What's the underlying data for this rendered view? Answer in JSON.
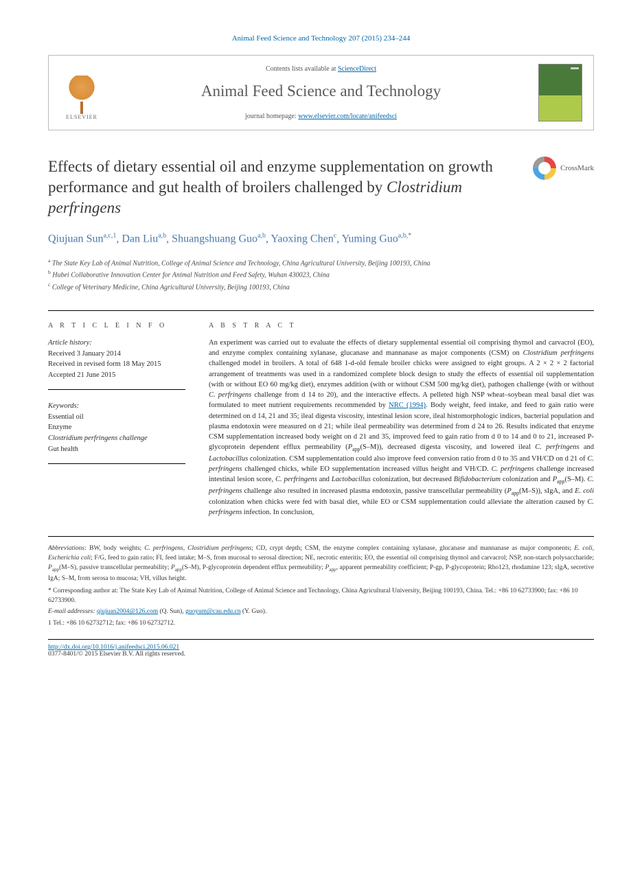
{
  "journal_ref": "Animal Feed Science and Technology 207 (2015) 234–244",
  "header": {
    "contents_pre": "Contents lists available at ",
    "contents_link": "ScienceDirect",
    "journal_name": "Animal Feed Science and Technology",
    "homepage_pre": "journal homepage: ",
    "homepage_link": "www.elsevier.com/locate/anifeedsci",
    "publisher": "ELSEVIER"
  },
  "title_parts": {
    "p1": "Effects of dietary essential oil and enzyme supplementation on growth performance and gut health of broilers challenged by ",
    "p2": "Clostridium perfringens"
  },
  "crossmark": "CrossMark",
  "authors_html": "Qiujuan Sun<sup>a,c,1</sup>, Dan Liu<sup>a,b</sup>, Shuangshuang Guo<sup>a,b</sup>, Yaoxing Chen<sup>c</sup>, Yuming Guo<sup>a,b,*</sup>",
  "affiliations": [
    {
      "sup": "a",
      "text": "The State Key Lab of Animal Nutrition, College of Animal Science and Technology, China Agricultural University, Beijing 100193, China"
    },
    {
      "sup": "b",
      "text": "Hubei Collaborative Innovation Center for Animal Nutrition and Feed Safety, Wuhan 430023, China"
    },
    {
      "sup": "c",
      "text": "College of Veterinary Medicine, China Agricultural University, Beijing 100193, China"
    }
  ],
  "article_info": {
    "head": "A R T I C L E   I N F O",
    "history_label": "Article history:",
    "history": [
      "Received 3 January 2014",
      "Received in revised form 18 May 2015",
      "Accepted 21 June 2015"
    ],
    "keywords_label": "Keywords:",
    "keywords": [
      "Essential oil",
      "Enzyme",
      "Clostridium perfringens challenge",
      "Gut health"
    ]
  },
  "abstract": {
    "head": "A B S T R A C T",
    "body_html": "An experiment was carried out to evaluate the effects of dietary supplemental essential oil comprising thymol and carvacrol (EO), and enzyme complex containing xylanase, glucanase and mannanase as major components (CSM) on <span class=\"italic\">Clostridium perfringens</span> challenged model in broilers. A total of 648 1-d-old female broiler chicks were assigned to eight groups. A 2 × 2 × 2 factorial arrangement of treatments was used in a randomized complete block design to study the effects of essential oil supplementation (with or without EO 60 mg/kg diet), enzymes addition (with or without CSM 500 mg/kg diet), pathogen challenge (with or without <span class=\"italic\">C. perfringens</span> challenge from d 14 to 20), and the interactive effects. A pelleted high NSP wheat–soybean meal basal diet was formulated to meet nutrient requirements recommended by <a href=\"#\">NRC (1994)</a>. Body weight, feed intake, and feed to gain ratio were determined on d 14, 21 and 35; ileal digesta viscosity, intestinal lesion score, ileal histomorphologic indices, bacterial population and plasma endotoxin were measured on d 21; while ileal permeability was determined from d 24 to 26. Results indicated that enzyme CSM supplementation increased body weight on d 21 and 35, improved feed to gain ratio from d 0 to 14 and 0 to 21, increased P-glycoprotein dependent efflux permeability (<span class=\"italic\">P</span><sub>app</sub>(S–M)), decreased digesta viscosity, and lowered ileal <span class=\"italic\">C. perfringens</span> and <span class=\"italic\">Lactobacillus</span> colonization. CSM supplementation could also improve feed conversion ratio from d 0 to 35 and VH/CD on d 21 of <span class=\"italic\">C. perfringens</span> challenged chicks, while EO supplementation increased villus height and VH/CD. <span class=\"italic\">C. perfringens</span> challenge increased intestinal lesion score, <span class=\"italic\">C. perfringens</span> and <span class=\"italic\">Lactobacillus</span> colonization, but decreased <span class=\"italic\">Bifidobacterium</span> colonization and <span class=\"italic\">P</span><sub>app</sub>(S–M). <span class=\"italic\">C. perfringens</span> challenge also resulted in increased plasma endotoxin, passive transcellular permeability (<span class=\"italic\">P</span><sub>app</sub>(M–S)), sIgA, and <span class=\"italic\">E. coli</span> colonization when chicks were fed with basal diet, while EO or CSM supplementation could alleviate the alteration caused by <span class=\"italic\">C. perfringens</span> infection. In conclusion,"
  },
  "footer": {
    "abbrev_html": "<span class=\"italic\">Abbreviations:</span> BW, body weights; <span class=\"italic\">C. perfringens</span>, <span class=\"italic\">Clostridium perfringens</span>; CD, crypt depth; CSM, the enzyme complex containing xylanase, glucanase and mannanase as major components; <span class=\"italic\">E. coli</span>, <span class=\"italic\">Escherichia coli</span>; F/G, feed to gain ratio; FI, feed intake; M–S, from mucosal to serosal direction; NE, necrotic enteritis; EO, the essential oil comprising thymol and carvacrol; NSP, non-starch polysaccharide; <span class=\"italic\">P</span><sub>app</sub>(M–S), passive transcellular permeability; <span class=\"italic\">P</span><sub>app</sub>(S–M), P-glycoprotein dependent efflux permeability; <span class=\"italic\">P</span><sub>app</sub>, apparent permeability coefficient; P-gp, P-glycoprotein; Rho123, rhodamine 123; sIgA, secretive IgA; S–M, from serosa to mucosa; VH, villus height.",
    "corr_html": "* Corresponding author at: The State Key Lab of Animal Nutrition, College of Animal Science and Technology, China Agricultural University, Beijing 100193, China. Tel.: +86 10 62733900; fax: +86 10 62733900.",
    "email_label": "E-mail addresses:",
    "email1": "qiujuan2004@126.com",
    "email1_after": " (Q. Sun), ",
    "email2": "guoyum@cau.edu.cn",
    "email2_after": " (Y. Guo).",
    "tel": "1  Tel.: +86 10 62732712; fax: +86 10 62732712.",
    "doi": "http://dx.doi.org/10.1016/j.anifeedsci.2015.06.021",
    "copyright": "0377-8401/© 2015 Elsevier B.V. All rights reserved."
  },
  "colors": {
    "link": "#0066aa",
    "author": "#4a7aaa",
    "text": "#2a2a2a"
  }
}
